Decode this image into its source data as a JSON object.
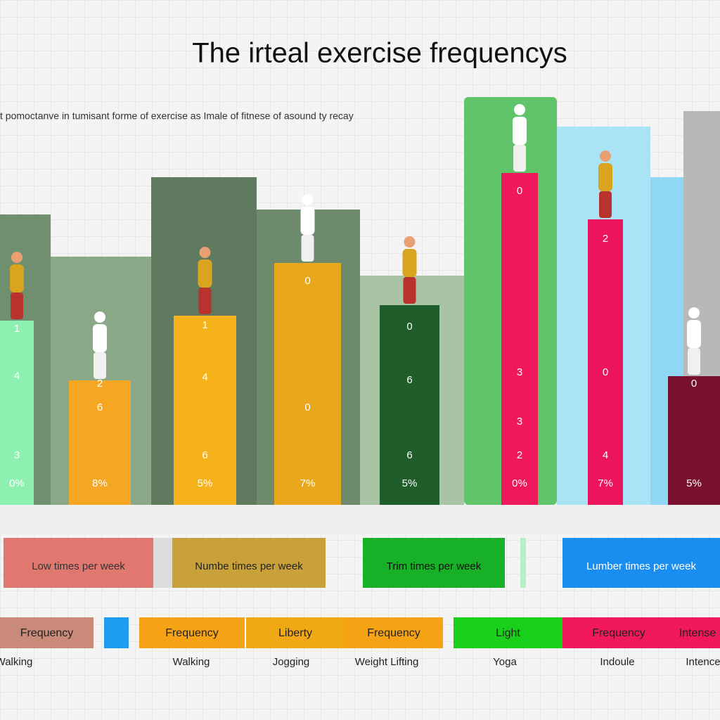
{
  "title": "The irteal exercise frequencys",
  "subtitle": "t pomoctanve in tumisant forme of exercise as Imale of fitnese of asound ty recay",
  "columns": [
    {
      "labels": [
        "1",
        "4",
        "3",
        "0%"
      ]
    },
    {
      "labels": [
        "2",
        "6",
        "8%"
      ]
    },
    {
      "labels": [
        "1",
        "4",
        "6",
        "5%"
      ]
    },
    {
      "labels": [
        "0",
        "0",
        "7%"
      ]
    },
    {
      "labels": [
        "0",
        "6",
        "6",
        "5%"
      ]
    },
    {
      "labels": [
        "0",
        "3",
        "3",
        "2",
        "0%"
      ]
    },
    {
      "labels": [
        "2",
        "0",
        "4",
        "7%"
      ]
    },
    {
      "labels": [
        "0",
        "5%"
      ]
    }
  ],
  "legend": [
    "Low times per week",
    "Numbe times per week",
    "Trim times per week",
    "Lumber times per week"
  ],
  "categories": [
    {
      "tag": "Frequency",
      "name": "Walking"
    },
    {
      "tag": "Frequency",
      "name": "Walking"
    },
    {
      "tag": "Liberty",
      "name": "Jogging"
    },
    {
      "tag": "Frequency",
      "name": "Weight Lifting"
    },
    {
      "tag": "Light",
      "name": "Yoga"
    },
    {
      "tag": "Frequency",
      "name": "Indoule"
    },
    {
      "tag": "Intense",
      "name": "Intence"
    }
  ]
}
